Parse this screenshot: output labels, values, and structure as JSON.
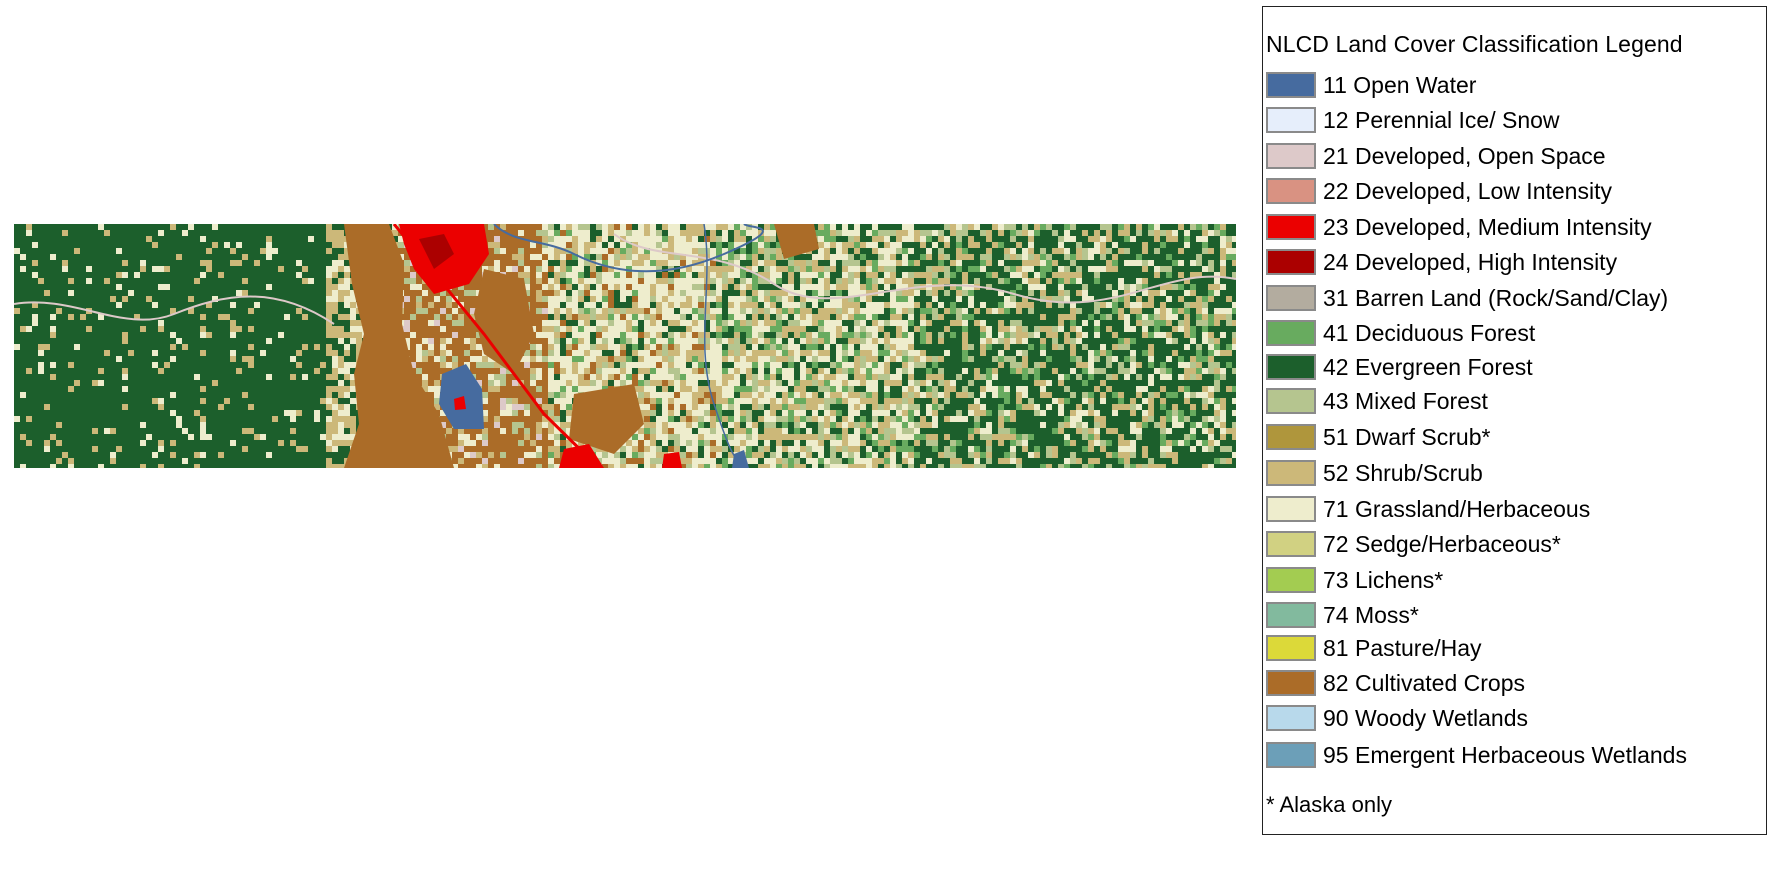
{
  "legend": {
    "title": "NLCD Land Cover Classification Legend",
    "footnote": "* Alaska only",
    "items": [
      {
        "label": "11 Open Water",
        "color": "#466b9f"
      },
      {
        "label": "12 Perennial Ice/ Snow",
        "color": "#e6eefb"
      },
      {
        "label": "21 Developed, Open Space",
        "color": "#ddc9c9"
      },
      {
        "label": "22 Developed, Low Intensity",
        "color": "#d99282"
      },
      {
        "label": "23 Developed, Medium Intensity",
        "color": "#eb0000"
      },
      {
        "label": "24 Developed, High Intensity",
        "color": "#ab0000"
      },
      {
        "label": "31 Barren Land (Rock/Sand/Clay)",
        "color": "#b3ac9f"
      },
      {
        "label": "41 Deciduous Forest",
        "color": "#68ab5f"
      },
      {
        "label": "42 Evergreen Forest",
        "color": "#1c5f2c"
      },
      {
        "label": "43 Mixed Forest",
        "color": "#b5c58f"
      },
      {
        "label": "51 Dwarf Scrub*",
        "color": "#af963c"
      },
      {
        "label": "52 Shrub/Scrub",
        "color": "#ccb879"
      },
      {
        "label": "71 Grassland/Herbaceous",
        "color": "#eeedcd"
      },
      {
        "label": "72 Sedge/Herbaceous*",
        "color": "#d1d182"
      },
      {
        "label": "73 Lichens*",
        "color": "#a3cc51"
      },
      {
        "label": "74 Moss*",
        "color": "#82ba9e"
      },
      {
        "label": "81 Pasture/Hay",
        "color": "#dcd939"
      },
      {
        "label": "82 Cultivated Crops",
        "color": "#ab6c28"
      },
      {
        "label": "90 Woody Wetlands",
        "color": "#b8d9eb"
      },
      {
        "label": "95 Emergent Herbaceous Wetlands",
        "color": "#6c9fb8"
      }
    ]
  },
  "map": {
    "colors": {
      "water": "#466b9f",
      "dev_open": "#ddc9c9",
      "dev_medium": "#eb0000",
      "dev_high": "#ab0000",
      "deciduous": "#68ab5f",
      "evergreen": "#1c5f2c",
      "mixed": "#b5c58f",
      "shrub": "#ccb879",
      "grassland": "#eeedcd",
      "crops": "#ab6c28"
    }
  }
}
